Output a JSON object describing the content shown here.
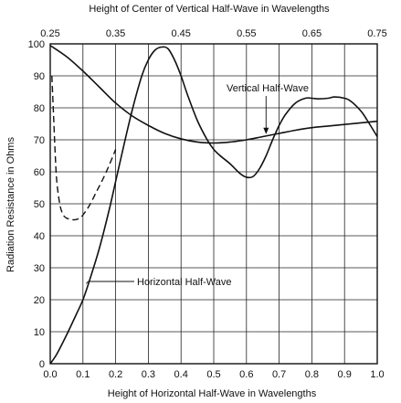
{
  "chart_data": {
    "type": "line",
    "title": "",
    "top_xlabel": "Height of Center of Vertical Half-Wave in Wavelengths",
    "xlabel": "Height of Horizontal Half-Wave in Wavelengths",
    "ylabel": "Radiation Resistance in Ohms",
    "xlim": [
      0,
      1.0
    ],
    "ylim": [
      0,
      100
    ],
    "top_xlim": [
      0.25,
      0.75
    ],
    "x_ticks": [
      "0.0",
      "0.1",
      "0.2",
      "0.3",
      "0.4",
      "0.5",
      "0.6",
      "0.7",
      "0.8",
      "0.9",
      "1.0"
    ],
    "y_ticks": [
      "0",
      "10",
      "20",
      "30",
      "40",
      "50",
      "60",
      "70",
      "80",
      "90",
      "100"
    ],
    "top_x_ticks": [
      "0.25",
      "0.35",
      "0.45",
      "0.55",
      "0.65",
      "0.75"
    ],
    "grid": true,
    "series": [
      {
        "name": "Horizontal Half-Wave",
        "style": "solid",
        "x": [
          0.0,
          0.02,
          0.05,
          0.08,
          0.1,
          0.12,
          0.15,
          0.18,
          0.2,
          0.22,
          0.25,
          0.28,
          0.3,
          0.32,
          0.34,
          0.36,
          0.38,
          0.4,
          0.42,
          0.45,
          0.48,
          0.5,
          0.52,
          0.55,
          0.58,
          0.6,
          0.62,
          0.64,
          0.66,
          0.68,
          0.7,
          0.72,
          0.75,
          0.78,
          0.8,
          0.82,
          0.85,
          0.87,
          0.9,
          0.92,
          0.95,
          0.97,
          1.0
        ],
        "y": [
          0,
          3,
          9,
          15.5,
          20,
          26,
          36,
          48,
          57,
          66,
          79,
          90,
          95,
          98,
          99,
          98.5,
          95,
          90,
          84,
          76,
          70,
          67,
          65,
          62.5,
          59.5,
          58.3,
          58.5,
          61,
          65,
          70,
          74.5,
          78,
          81.5,
          83,
          83,
          82.8,
          83,
          83.4,
          83,
          82,
          79,
          76,
          71
        ]
      },
      {
        "name": "",
        "style": "dashed",
        "x": [
          0.005,
          0.01,
          0.015,
          0.02,
          0.03,
          0.04,
          0.05,
          0.06,
          0.07,
          0.08,
          0.09,
          0.1,
          0.12,
          0.14,
          0.16,
          0.18,
          0.2
        ],
        "y": [
          90,
          78,
          66,
          57,
          49.5,
          46.5,
          45.5,
          45.2,
          45,
          45.1,
          45.5,
          46.5,
          49.5,
          53.5,
          57.5,
          62,
          67
        ]
      },
      {
        "name": "Vertical Half-Wave",
        "style": "solid",
        "x": [
          0.0,
          0.05,
          0.1,
          0.15,
          0.2,
          0.25,
          0.3,
          0.35,
          0.4,
          0.45,
          0.5,
          0.55,
          0.6,
          0.65,
          0.7,
          0.75,
          0.8,
          0.85,
          0.9,
          0.95,
          1.0
        ],
        "y": [
          99.5,
          96,
          91.5,
          86.5,
          81.5,
          77.5,
          74.5,
          72,
          70.3,
          69.3,
          69,
          69.3,
          70,
          71,
          72,
          73,
          73.8,
          74.3,
          74.8,
          75.3,
          75.8
        ]
      }
    ],
    "annotations": [
      {
        "id": "vertical",
        "text": "Vertical Half-Wave",
        "anchor_x": 0.66,
        "anchor_y": 71.5
      },
      {
        "id": "horizontal",
        "text": "Horizontal Half-Wave",
        "anchor_x": 0.11,
        "anchor_y": 25
      }
    ]
  }
}
